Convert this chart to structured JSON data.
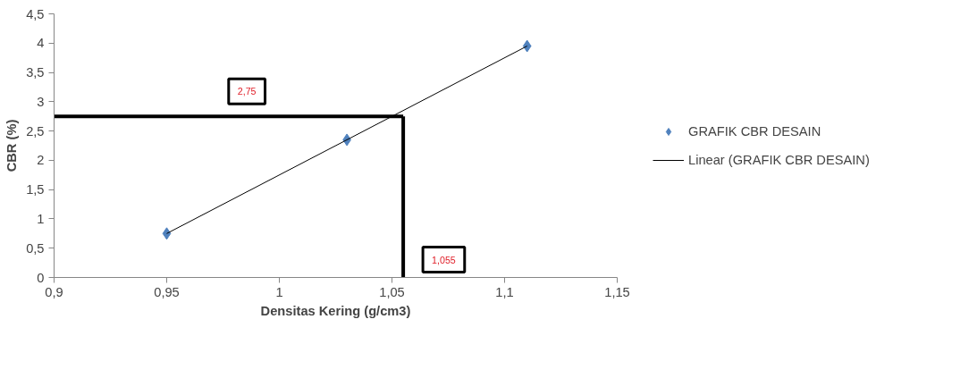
{
  "chart_data": {
    "type": "scatter",
    "xlabel": "Densitas Kering (g/cm3)",
    "ylabel": "CBR (%)",
    "xlim": [
      0.9,
      1.15
    ],
    "ylim": [
      0,
      4.5
    ],
    "xticks": [
      {
        "value": 0.9,
        "label": "0,9"
      },
      {
        "value": 0.95,
        "label": "0,95"
      },
      1,
      {
        "value": 1.05,
        "label": "1,05"
      },
      {
        "value": 1.1,
        "label": "1,1"
      },
      {
        "value": 1.15,
        "label": "1,15"
      }
    ],
    "yticks": [
      0,
      {
        "value": 0.5,
        "label": "0,5"
      },
      1,
      {
        "value": 1.5,
        "label": "1,5"
      },
      2,
      {
        "value": 2.5,
        "label": "2,5"
      },
      3,
      {
        "value": 3.5,
        "label": "3,5"
      },
      4,
      {
        "value": 4.5,
        "label": "4,5"
      }
    ],
    "series": [
      {
        "name": "GRAFIK CBR DESAIN",
        "marker": "diamond",
        "color": "#4f81bd",
        "x": [
          0.95,
          1.03,
          1.11
        ],
        "values": [
          0.75,
          2.35,
          3.95
        ]
      },
      {
        "name": "Linear (GRAFIK CBR DESAIN)",
        "type": "line",
        "marker": "none",
        "color": "#000000",
        "x": [
          0.95,
          1.11
        ],
        "values": [
          0.75,
          3.95
        ]
      }
    ],
    "ref_lines": [
      {
        "axis": "y",
        "value": 2.75,
        "label": "2,75",
        "color": "#000000"
      },
      {
        "axis": "x",
        "value": 1.055,
        "label": "1,055",
        "color": "#000000"
      }
    ],
    "grid": false,
    "legend": "right"
  }
}
